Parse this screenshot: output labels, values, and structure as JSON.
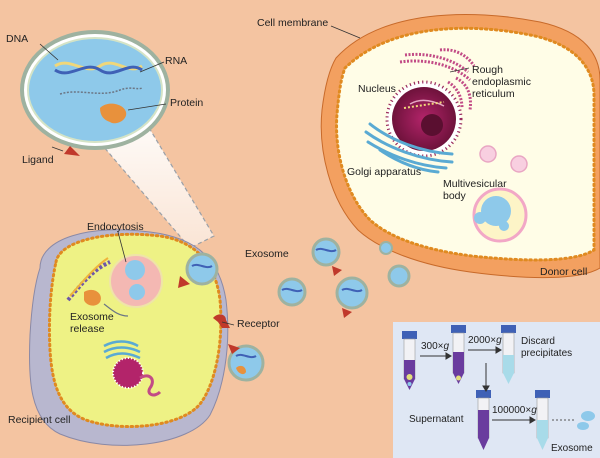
{
  "colors": {
    "background": "#f4c4a1",
    "donor_cell": "#f3a060",
    "cytoplasm": "#fffde7",
    "membrane_dots": "#e08a20",
    "recipient_cell": "#eef285",
    "exosome": "#8ec9ea",
    "nucleus": "#8a1b4c",
    "receptor": "#c0392b",
    "panel": "#dfe7f4"
  },
  "labels": {
    "dna": "DNA",
    "rna": "RNA",
    "protein": "Protein",
    "ligand": "Ligand",
    "cell_membrane": "Cell membrane",
    "nucleus": "Nucleus",
    "rough_er": "Rough endoplasmic reticulum",
    "golgi": "Golgi apparatus",
    "multivesicular_body": "Multivesicular body",
    "donor_cell": "Donor cell",
    "exosome": "Exosome",
    "endocytosis": "Endocytosis",
    "exosome_release": "Exosome release",
    "receptor": "Receptor",
    "recipient_cell": "Recipient cell"
  },
  "lines": {
    "rough_er": [
      "Rough",
      "endoplasmic",
      "reticulum"
    ],
    "multivesicular_body": [
      "Multivesicular",
      "body"
    ],
    "exosome_release": [
      "Exosome",
      "release"
    ]
  },
  "centrifugation": {
    "step1": "300×",
    "step2": "2000×",
    "step3": "100000×",
    "g": "g",
    "discard_lines": [
      "Discard",
      "precipitates"
    ],
    "supernatant": "Supernatant",
    "exosome": "Exosome"
  }
}
